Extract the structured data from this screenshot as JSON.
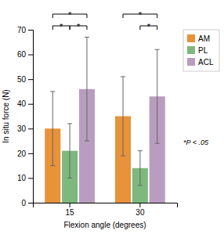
{
  "chart_data": {
    "type": "bar",
    "categories": [
      "15",
      "30"
    ],
    "series": [
      {
        "name": "AM",
        "color": "#E8923A",
        "values": [
          30,
          35
        ],
        "errors": [
          15,
          16
        ]
      },
      {
        "name": "PL",
        "color": "#7EB87E",
        "values": [
          21,
          14
        ],
        "errors": [
          11,
          7
        ]
      },
      {
        "name": "ACL",
        "color": "#B99DC0",
        "values": [
          46,
          43
        ],
        "errors": [
          21,
          19
        ]
      }
    ],
    "xlabel": "Flexion angle (degrees)",
    "ylabel": "In situ force (N)",
    "ylim": [
      0,
      70
    ],
    "yticks": [
      0,
      10,
      20,
      30,
      40,
      50,
      60,
      70
    ],
    "grid": false,
    "legend": "right",
    "annotations": [
      {
        "text": "*",
        "category": "15",
        "from": "AM",
        "to": "PL"
      },
      {
        "text": "*",
        "category": "15",
        "from": "PL",
        "to": "ACL"
      },
      {
        "text": "*",
        "category": "15",
        "from": "AM",
        "to": "ACL"
      },
      {
        "text": "*",
        "category": "30",
        "from": "PL",
        "to": "ACL"
      },
      {
        "text": "*",
        "category": "30",
        "from": "AM",
        "to": "ACL"
      }
    ],
    "note": "*P < .05"
  }
}
